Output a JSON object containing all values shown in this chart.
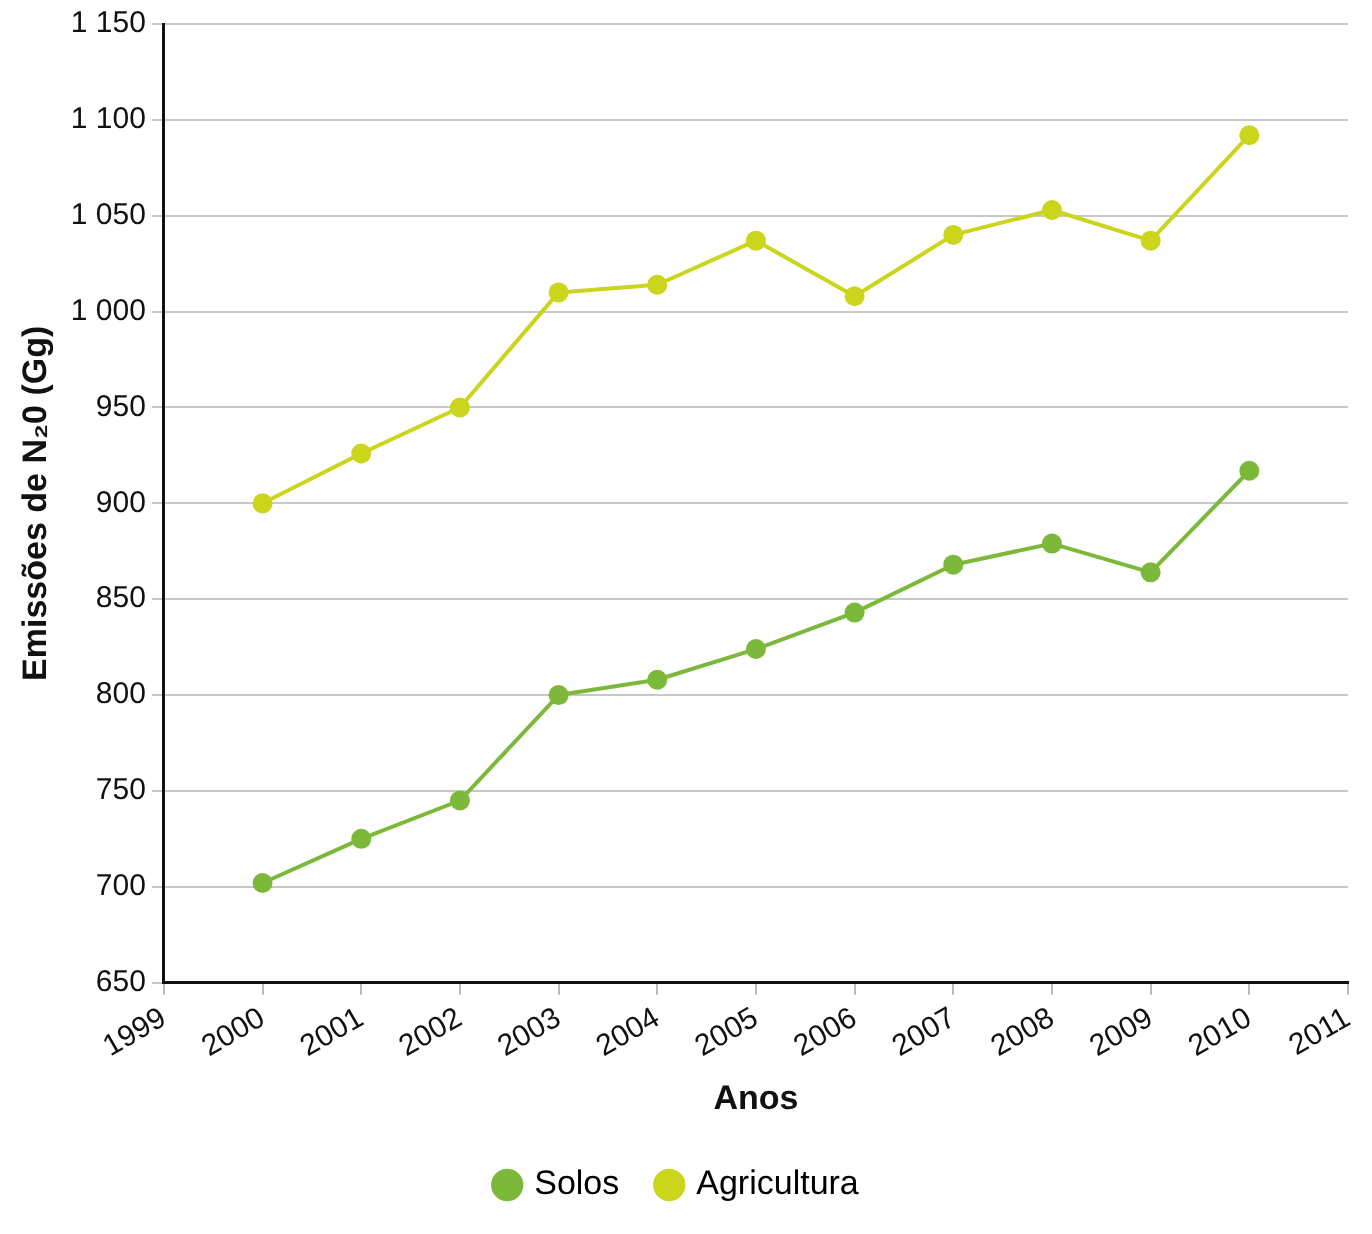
{
  "chart_data": {
    "type": "line",
    "xlabel": "Anos",
    "ylabel": "Emissões de N₂0 (Gg)",
    "x": [
      2000,
      2001,
      2002,
      2003,
      2004,
      2005,
      2006,
      2007,
      2008,
      2009,
      2010
    ],
    "series": [
      {
        "name": "Solos",
        "color": "#7cb83a",
        "values": [
          702,
          725,
          745,
          800,
          808,
          824,
          843,
          868,
          879,
          864,
          917
        ]
      },
      {
        "name": "Agricultura",
        "color": "#cbd51c",
        "values": [
          900,
          926,
          950,
          1010,
          1014,
          1037,
          1008,
          1040,
          1053,
          1037,
          1092
        ]
      }
    ],
    "xlim": [
      1999,
      2011
    ],
    "xticks": [
      1999,
      2000,
      2001,
      2002,
      2003,
      2004,
      2005,
      2006,
      2007,
      2008,
      2009,
      2010,
      2011
    ],
    "ylim": [
      650,
      1150
    ],
    "yticks": [
      650,
      700,
      750,
      800,
      850,
      900,
      950,
      {
        "value": 1000,
        "label": "1 000"
      },
      {
        "value": 1050,
        "label": "1 050"
      },
      {
        "value": 1100,
        "label": "1 100"
      },
      {
        "value": 1150,
        "label": "1 150"
      }
    ],
    "grid": "y",
    "legend": "bottom",
    "marker": "circle",
    "line_style": "solid"
  }
}
